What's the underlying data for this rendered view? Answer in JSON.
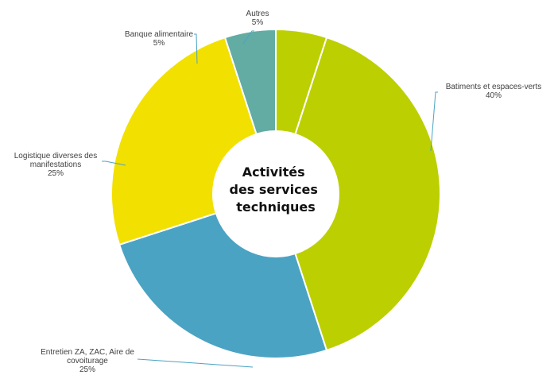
{
  "chart_data": {
    "type": "pie",
    "variant": "donut",
    "title_lines": [
      "Activités",
      "des services",
      "techniques"
    ],
    "slices": [
      {
        "label_lines": [
          "Batiments et espaces-verts"
        ],
        "percent_text": "40%",
        "value": 40,
        "color": "#bccf00"
      },
      {
        "label_lines": [
          "Entretien ZA, ZAC, Aire de",
          "covoiturage"
        ],
        "percent_text": "25%",
        "value": 25,
        "color": "#4ba3c3"
      },
      {
        "label_lines": [
          "Logistique diverses des",
          "manifestations"
        ],
        "percent_text": "25%",
        "value": 25,
        "color": "#f2e000"
      },
      {
        "label_lines": [
          "Banque alimentaire"
        ],
        "percent_text": "5%",
        "value": 5,
        "color": "#62aca4"
      },
      {
        "label_lines": [
          "Autres"
        ],
        "percent_text": "5%",
        "value": 5,
        "color": "#bccf00"
      }
    ],
    "legend": "none",
    "slice_border_color": "#ffffff",
    "leader_line_color": "#4ba3c3",
    "label_color": "#404040"
  }
}
